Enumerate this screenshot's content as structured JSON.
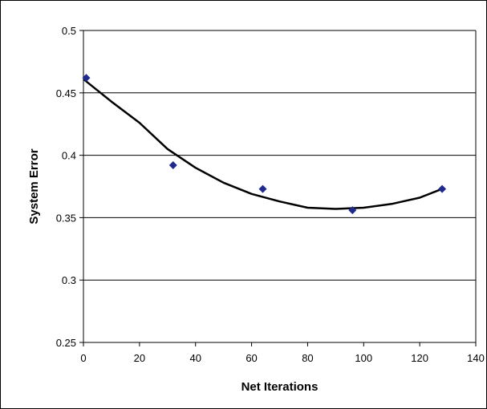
{
  "chart_data": {
    "type": "scatter",
    "title": "",
    "xlabel": "Net Iterations",
    "ylabel": "System Error",
    "xlim": [
      0,
      140
    ],
    "ylim": [
      0.25,
      0.5
    ],
    "x_ticks": [
      "0",
      "20",
      "40",
      "60",
      "80",
      "100",
      "120",
      "140"
    ],
    "y_ticks": [
      "0.25",
      "0.3",
      "0.35",
      "0.4",
      "0.45",
      "0.5"
    ],
    "grid": "horizontal",
    "legend": "none",
    "series": [
      {
        "type": "scatter",
        "marker": "diamond",
        "color": "#1f2a8c",
        "points": [
          {
            "x": 1,
            "y": 0.462
          },
          {
            "x": 32,
            "y": 0.392
          },
          {
            "x": 64,
            "y": 0.373
          },
          {
            "x": 96,
            "y": 0.356
          },
          {
            "x": 128,
            "y": 0.373
          }
        ]
      },
      {
        "type": "line",
        "trendline": "polynomial",
        "color": "#000000",
        "points": [
          {
            "x": 0,
            "y": 0.461
          },
          {
            "x": 10,
            "y": 0.443
          },
          {
            "x": 20,
            "y": 0.426
          },
          {
            "x": 30,
            "y": 0.405
          },
          {
            "x": 40,
            "y": 0.39
          },
          {
            "x": 50,
            "y": 0.378
          },
          {
            "x": 60,
            "y": 0.369
          },
          {
            "x": 70,
            "y": 0.363
          },
          {
            "x": 80,
            "y": 0.358
          },
          {
            "x": 90,
            "y": 0.357
          },
          {
            "x": 100,
            "y": 0.358
          },
          {
            "x": 110,
            "y": 0.361
          },
          {
            "x": 120,
            "y": 0.366
          },
          {
            "x": 128,
            "y": 0.373
          }
        ]
      }
    ]
  }
}
